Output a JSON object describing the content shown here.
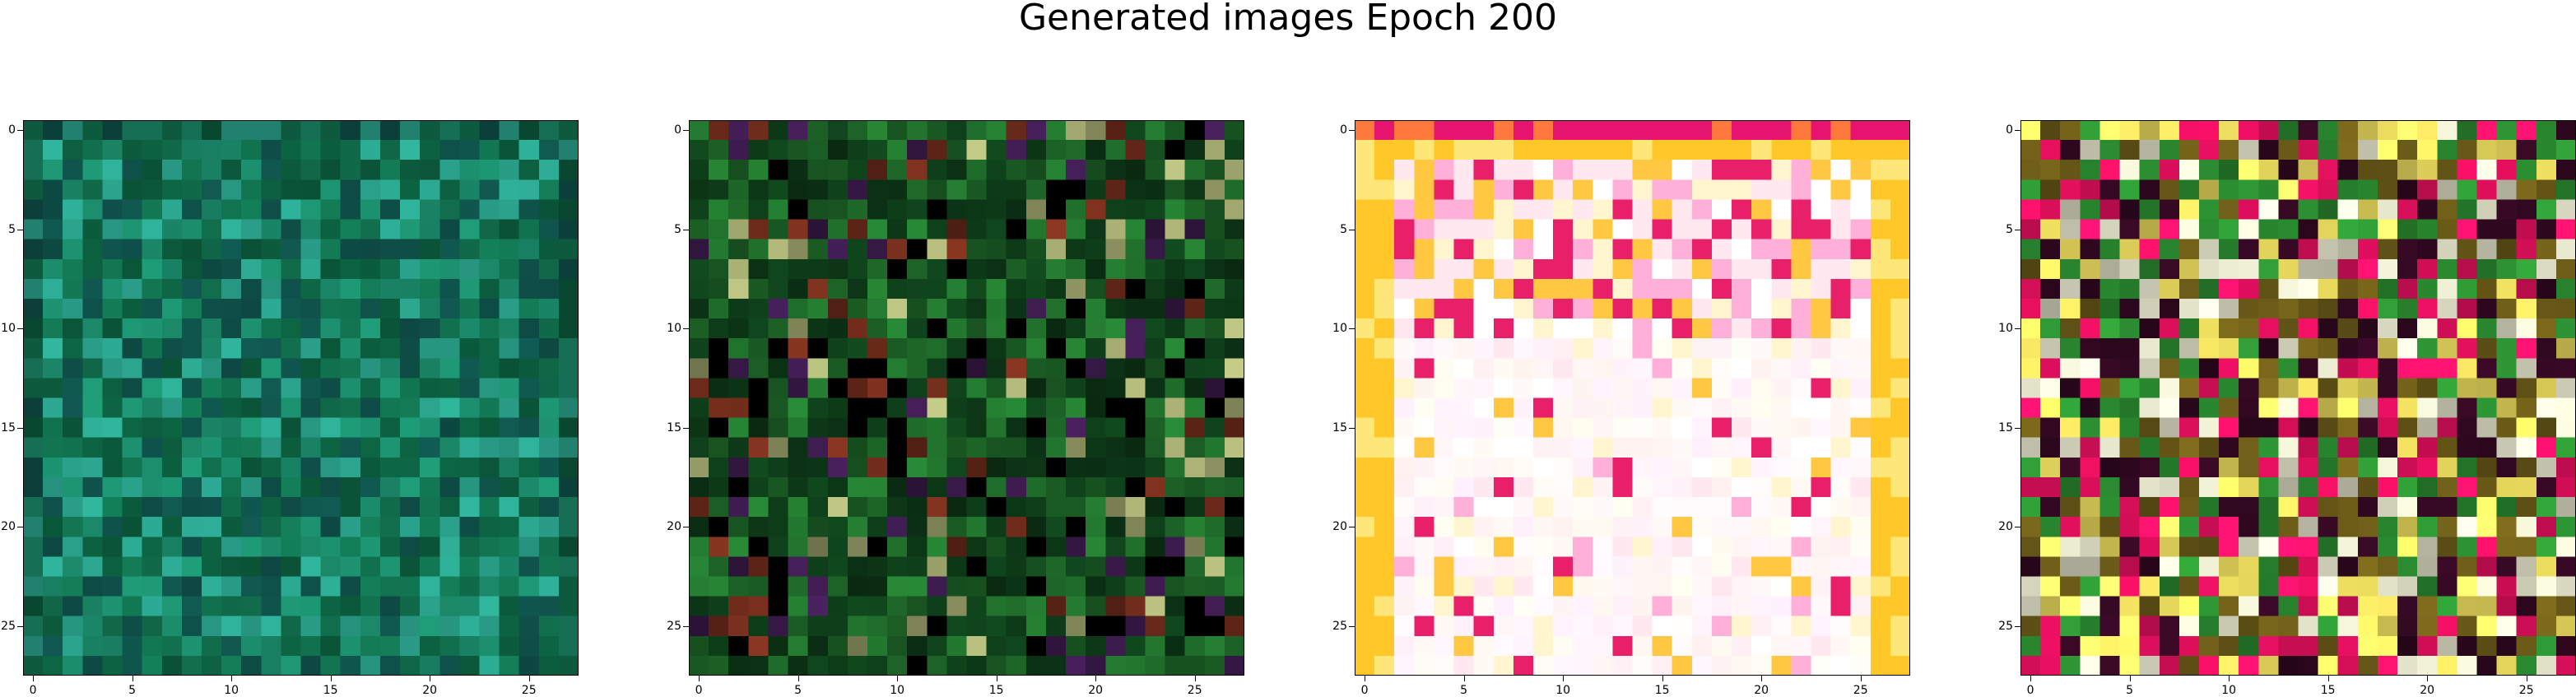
{
  "figure": {
    "title": "Generated images Epoch 200"
  },
  "axes_ticks": {
    "x": [
      "0",
      "5",
      "10",
      "15",
      "20",
      "25"
    ],
    "y": [
      "0",
      "5",
      "10",
      "15",
      "20",
      "25"
    ]
  },
  "images": [
    {
      "name": "sample-1",
      "style": "teal-green",
      "palette": [
        "#0b5a3c",
        "#1b8a6a",
        "#2aa08a",
        "#11704e",
        "#0e4f48"
      ]
    },
    {
      "name": "sample-2",
      "style": "dark-mixed",
      "palette": [
        "#0d3a18",
        "#1f6b2a",
        "#000000",
        "#6b2a1a",
        "#3a1a4a",
        "#9aa06a"
      ]
    },
    {
      "name": "sample-3",
      "style": "light-pastel",
      "palette": [
        "#ffe8f0",
        "#fff6d0",
        "#ffb0d8",
        "#ffc840",
        "#e8206a",
        "#ffffff"
      ]
    },
    {
      "name": "sample-4",
      "style": "vivid-mixed",
      "palette": [
        "#6a5a18",
        "#d8d8c0",
        "#e81060",
        "#2a8a30",
        "#f0e060",
        "#300820"
      ]
    }
  ]
}
